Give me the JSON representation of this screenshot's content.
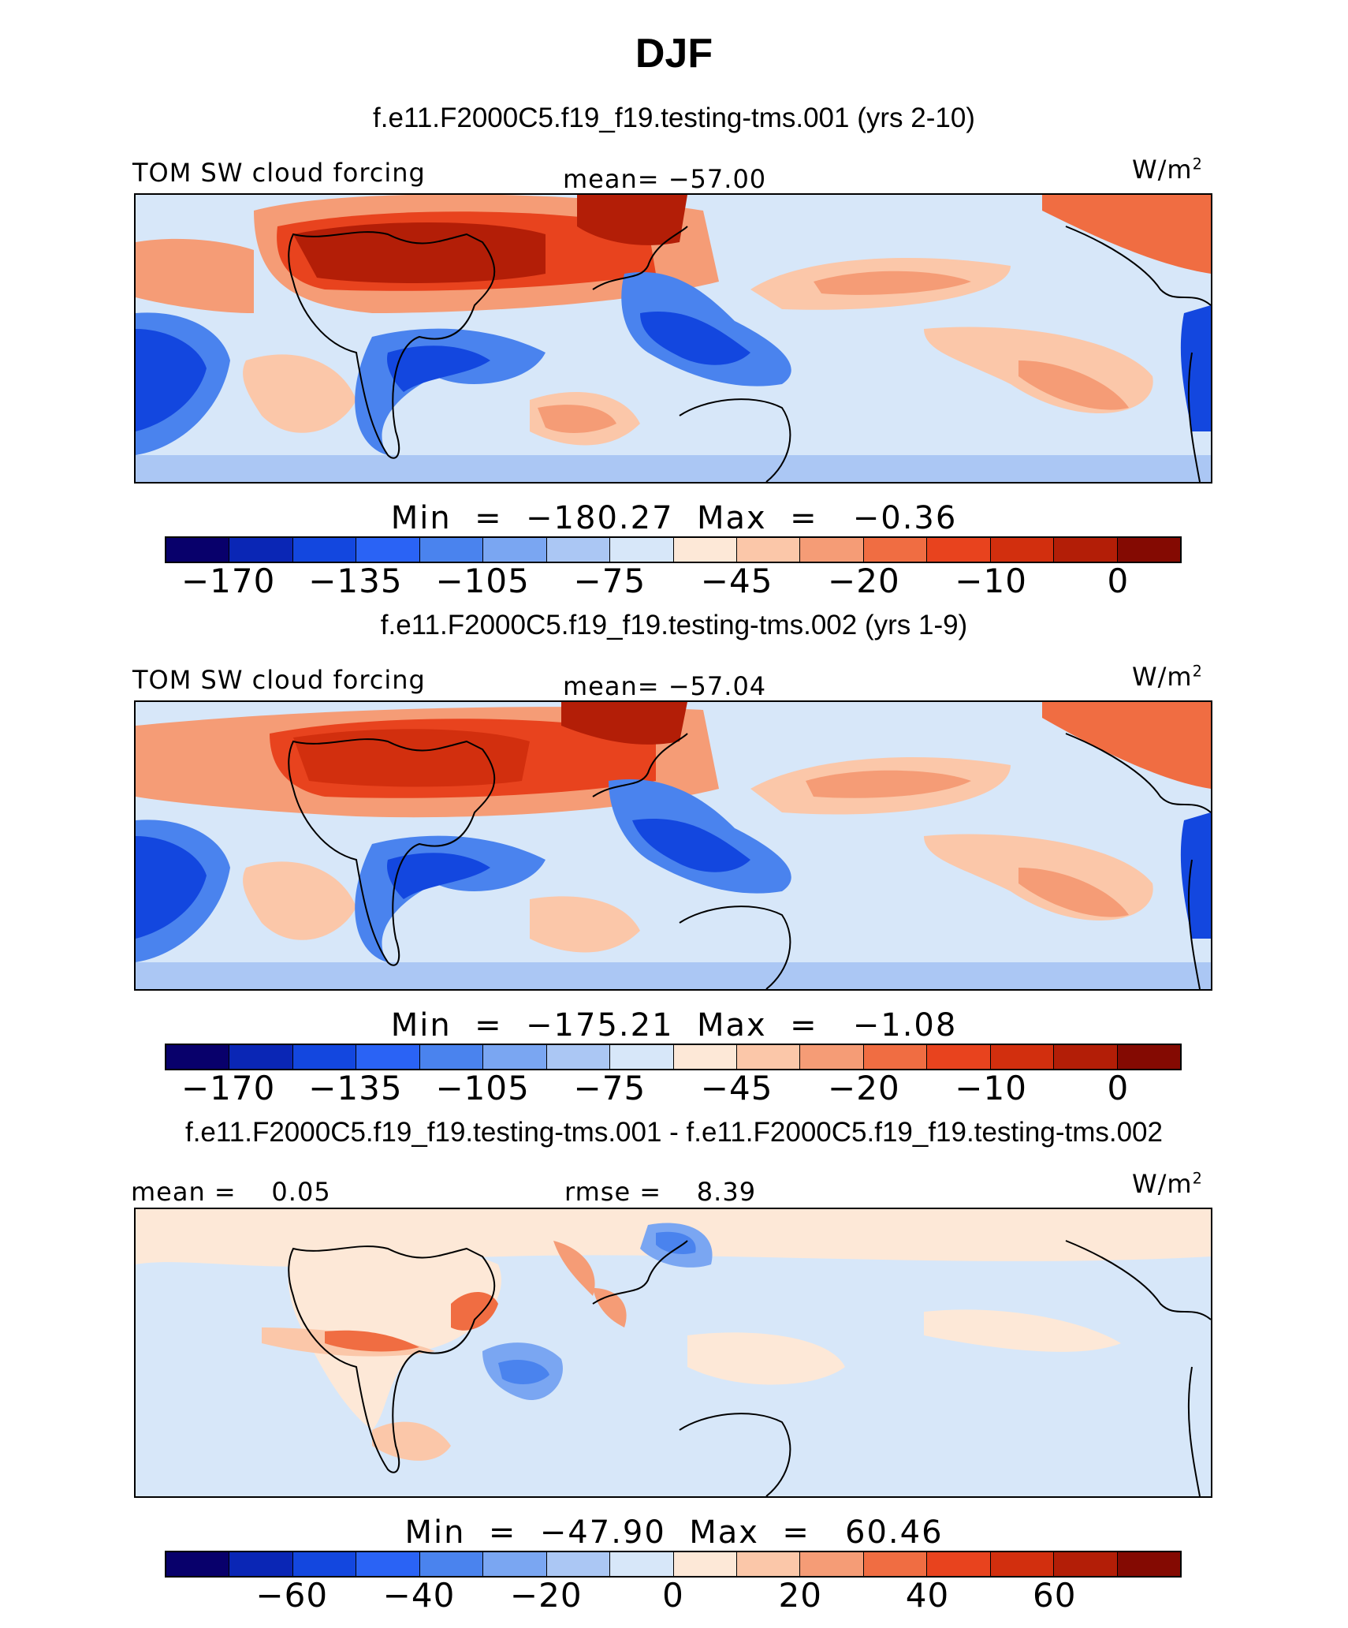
{
  "title": "DJF",
  "panels": [
    {
      "case_title": "f.e11.F2000C5.f19_f19.testing-tms.001 (yrs 2-10)",
      "left_label": "TOM SW cloud forcing",
      "center_label": "mean= −57.00",
      "units": "W/m",
      "units_exp": "2",
      "minmax": "Min  =  −180.27  Max  =   −0.36",
      "tick_labels": [
        "−170",
        "−135",
        "−105",
        "−75",
        "−45",
        "−20",
        "−10",
        "0"
      ],
      "palette": "abs"
    },
    {
      "case_title": "f.e11.F2000C5.f19_f19.testing-tms.002 (yrs 1-9)",
      "left_label": "TOM SW cloud forcing",
      "center_label": "mean= −57.04",
      "units": "W/m",
      "units_exp": "2",
      "minmax": "Min  =  −175.21  Max  =   −1.08",
      "tick_labels": [
        "−170",
        "−135",
        "−105",
        "−75",
        "−45",
        "−20",
        "−10",
        "0"
      ],
      "palette": "abs"
    },
    {
      "case_title": "f.e11.F2000C5.f19_f19.testing-tms.001 - f.e11.F2000C5.f19_f19.testing-tms.002",
      "left_label": "mean =    0.05",
      "center_label": "rmse =    8.39",
      "units": "W/m",
      "units_exp": "2",
      "minmax": "Min  =  −47.90  Max  =   60.46",
      "tick_labels": [
        "−60",
        "−40",
        "−20",
        "0",
        "20",
        "40",
        "60"
      ],
      "palette": "diff"
    }
  ],
  "colors": [
    "#08006b",
    "#0a26b5",
    "#1347df",
    "#2a63f5",
    "#4a83ee",
    "#7aa6f2",
    "#abc7f4",
    "#d7e7f9",
    "#fde8d7",
    "#fbc7a9",
    "#f59c76",
    "#f06d42",
    "#e8431e",
    "#d22f0e",
    "#b31e07",
    "#840a02"
  ]
}
